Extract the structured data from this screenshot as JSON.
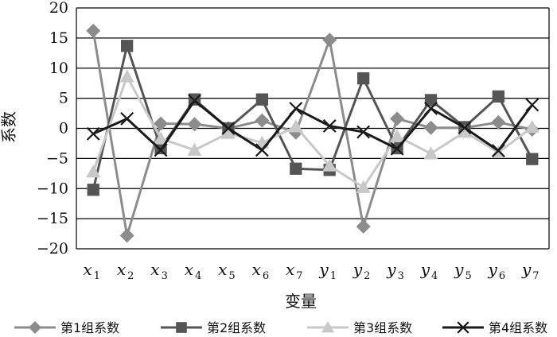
{
  "chart_data": {
    "type": "line",
    "xlabel": "变量",
    "ylabel": "系数",
    "ylim": [
      -20,
      20
    ],
    "y_ticks": [
      20,
      15,
      10,
      5,
      0,
      -5,
      -10,
      -15,
      -20
    ],
    "grid": "horizontal",
    "legend_position": "bottom",
    "categories": [
      {
        "base": "x",
        "sub": "1"
      },
      {
        "base": "x",
        "sub": "2"
      },
      {
        "base": "x",
        "sub": "3"
      },
      {
        "base": "x",
        "sub": "4"
      },
      {
        "base": "x",
        "sub": "5"
      },
      {
        "base": "x",
        "sub": "6"
      },
      {
        "base": "x",
        "sub": "7"
      },
      {
        "base": "y",
        "sub": "1"
      },
      {
        "base": "y",
        "sub": "2"
      },
      {
        "base": "y",
        "sub": "3"
      },
      {
        "base": "y",
        "sub": "4"
      },
      {
        "base": "y",
        "sub": "5"
      },
      {
        "base": "y",
        "sub": "6"
      },
      {
        "base": "y",
        "sub": "7"
      }
    ],
    "series": [
      {
        "name": "第1组系数",
        "color": "#8c8c8c",
        "marker": "diamond",
        "values": [
          16.2,
          -17.8,
          0.8,
          0.7,
          0.0,
          1.3,
          -0.7,
          14.7,
          -16.3,
          1.6,
          0.1,
          0.1,
          1.0,
          -0.2
        ]
      },
      {
        "name": "第2组系数",
        "color": "#555555",
        "marker": "square",
        "values": [
          -10.2,
          13.7,
          -3.3,
          4.8,
          0.0,
          4.8,
          -6.7,
          -6.9,
          8.3,
          -3.3,
          4.7,
          0.2,
          5.3,
          -5.1
        ]
      },
      {
        "name": "第3组系数",
        "color": "#c8c8c8",
        "marker": "triangle",
        "values": [
          -7.2,
          8.6,
          -1.7,
          -3.6,
          -0.8,
          -2.4,
          0.3,
          -6.2,
          -9.8,
          -1.3,
          -4.2,
          -0.6,
          -4.0,
          0.2
        ]
      },
      {
        "name": "第4组系数",
        "color": "#1a1a1a",
        "marker": "x",
        "values": [
          -0.9,
          1.6,
          -3.6,
          4.6,
          0.0,
          -3.6,
          3.3,
          0.4,
          -0.6,
          -3.4,
          3.3,
          0.1,
          -3.7,
          3.9
        ]
      }
    ]
  }
}
